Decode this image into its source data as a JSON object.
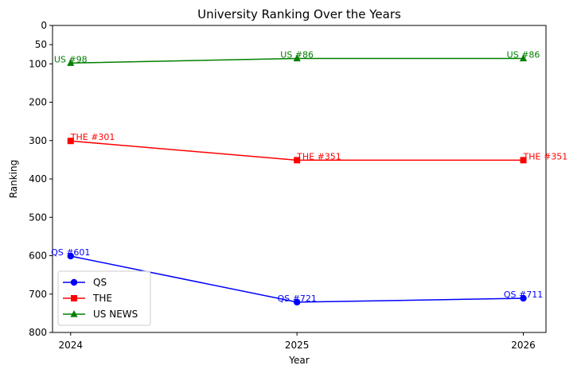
{
  "chart_data": {
    "type": "line",
    "title": "University Ranking Over the Years",
    "xlabel": "Year",
    "ylabel": "Ranking",
    "x": [
      2024,
      2025,
      2026
    ],
    "x_tick_labels": [
      "2024",
      "2025",
      "2026"
    ],
    "ylim": [
      0,
      800
    ],
    "y_inverted": true,
    "y_ticks": [
      0,
      50,
      100,
      200,
      300,
      400,
      500,
      600,
      700,
      800
    ],
    "y_tick_labels": [
      "0",
      "50",
      "100",
      "200",
      "300",
      "400",
      "500",
      "600",
      "700",
      "800"
    ],
    "grid": false,
    "legend_position": "lower-left",
    "series": [
      {
        "name": "QS",
        "color": "#0000ff",
        "marker": "circle",
        "values": [
          601,
          721,
          711
        ],
        "labels": [
          "QS #601",
          "QS #721",
          "QS #711"
        ]
      },
      {
        "name": "THE",
        "color": "#ff0000",
        "marker": "square",
        "values": [
          301,
          351,
          351
        ],
        "labels": [
          "THE #301",
          "THE #351",
          "THE #351"
        ]
      },
      {
        "name": "US NEWS",
        "color": "#008000",
        "marker": "triangle",
        "values": [
          98,
          86,
          86
        ],
        "labels": [
          "US #98",
          "US #86",
          "US #86"
        ]
      }
    ]
  }
}
